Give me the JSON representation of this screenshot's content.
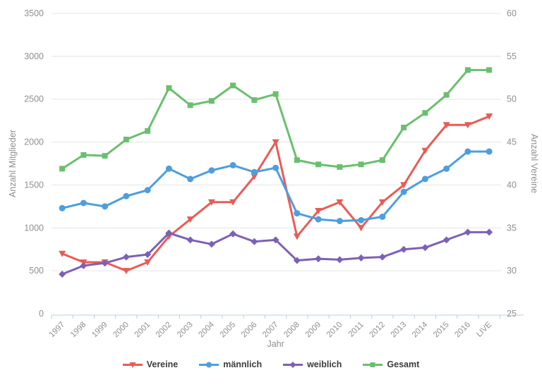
{
  "chart_data": {
    "type": "line",
    "title": "",
    "xlabel": "Jahr",
    "y_left_label": "Anzahl Mitglieder",
    "y_right_label": "Anzahl Vereine",
    "y_left_range": [
      0,
      3500
    ],
    "y_left_step": 500,
    "y_right_range": [
      25,
      60
    ],
    "y_right_step": 5,
    "grid": true,
    "legend_position": "bottom",
    "x": [
      "1997",
      "1998",
      "1999",
      "2000",
      "2001",
      "2002",
      "2003",
      "2004",
      "2005",
      "2006",
      "2007",
      "2008",
      "2009",
      "2010",
      "2011",
      "2012",
      "2013",
      "2014",
      "2015",
      "2016",
      "LIVE"
    ],
    "series": [
      {
        "name": "Vereine",
        "axis": "right",
        "color": "#e95b55",
        "marker": "triangle-down",
        "values": [
          32,
          31,
          31,
          30,
          31,
          34,
          36,
          38,
          38,
          41,
          45,
          34,
          37,
          38,
          35,
          38,
          40,
          44,
          47,
          47,
          48
        ]
      },
      {
        "name": "männlich",
        "axis": "left",
        "color": "#4d9ede",
        "marker": "circle",
        "values": [
          1230,
          1290,
          1250,
          1370,
          1440,
          1690,
          1570,
          1670,
          1730,
          1650,
          1700,
          1170,
          1100,
          1080,
          1090,
          1130,
          1420,
          1570,
          1690,
          1890,
          1890
        ]
      },
      {
        "name": "weiblich",
        "axis": "left",
        "color": "#7d60b5",
        "marker": "diamond",
        "values": [
          460,
          560,
          590,
          660,
          690,
          940,
          860,
          810,
          930,
          840,
          860,
          620,
          640,
          630,
          650,
          660,
          750,
          770,
          860,
          950,
          950
        ]
      },
      {
        "name": "Gesamt",
        "axis": "left",
        "color": "#6abf6f",
        "marker": "square",
        "values": [
          1690,
          1850,
          1840,
          2030,
          2130,
          2630,
          2430,
          2480,
          2660,
          2490,
          2560,
          1790,
          1740,
          1710,
          1740,
          1790,
          2170,
          2340,
          2550,
          2840,
          2840
        ]
      }
    ],
    "colors": {
      "gridline": "#e4e4e4",
      "axis_line": "#b7cedf",
      "tick_label": "#8f8f8f",
      "axis_title": "#8f8f8f",
      "legend_text": "#3c3c3c"
    }
  }
}
